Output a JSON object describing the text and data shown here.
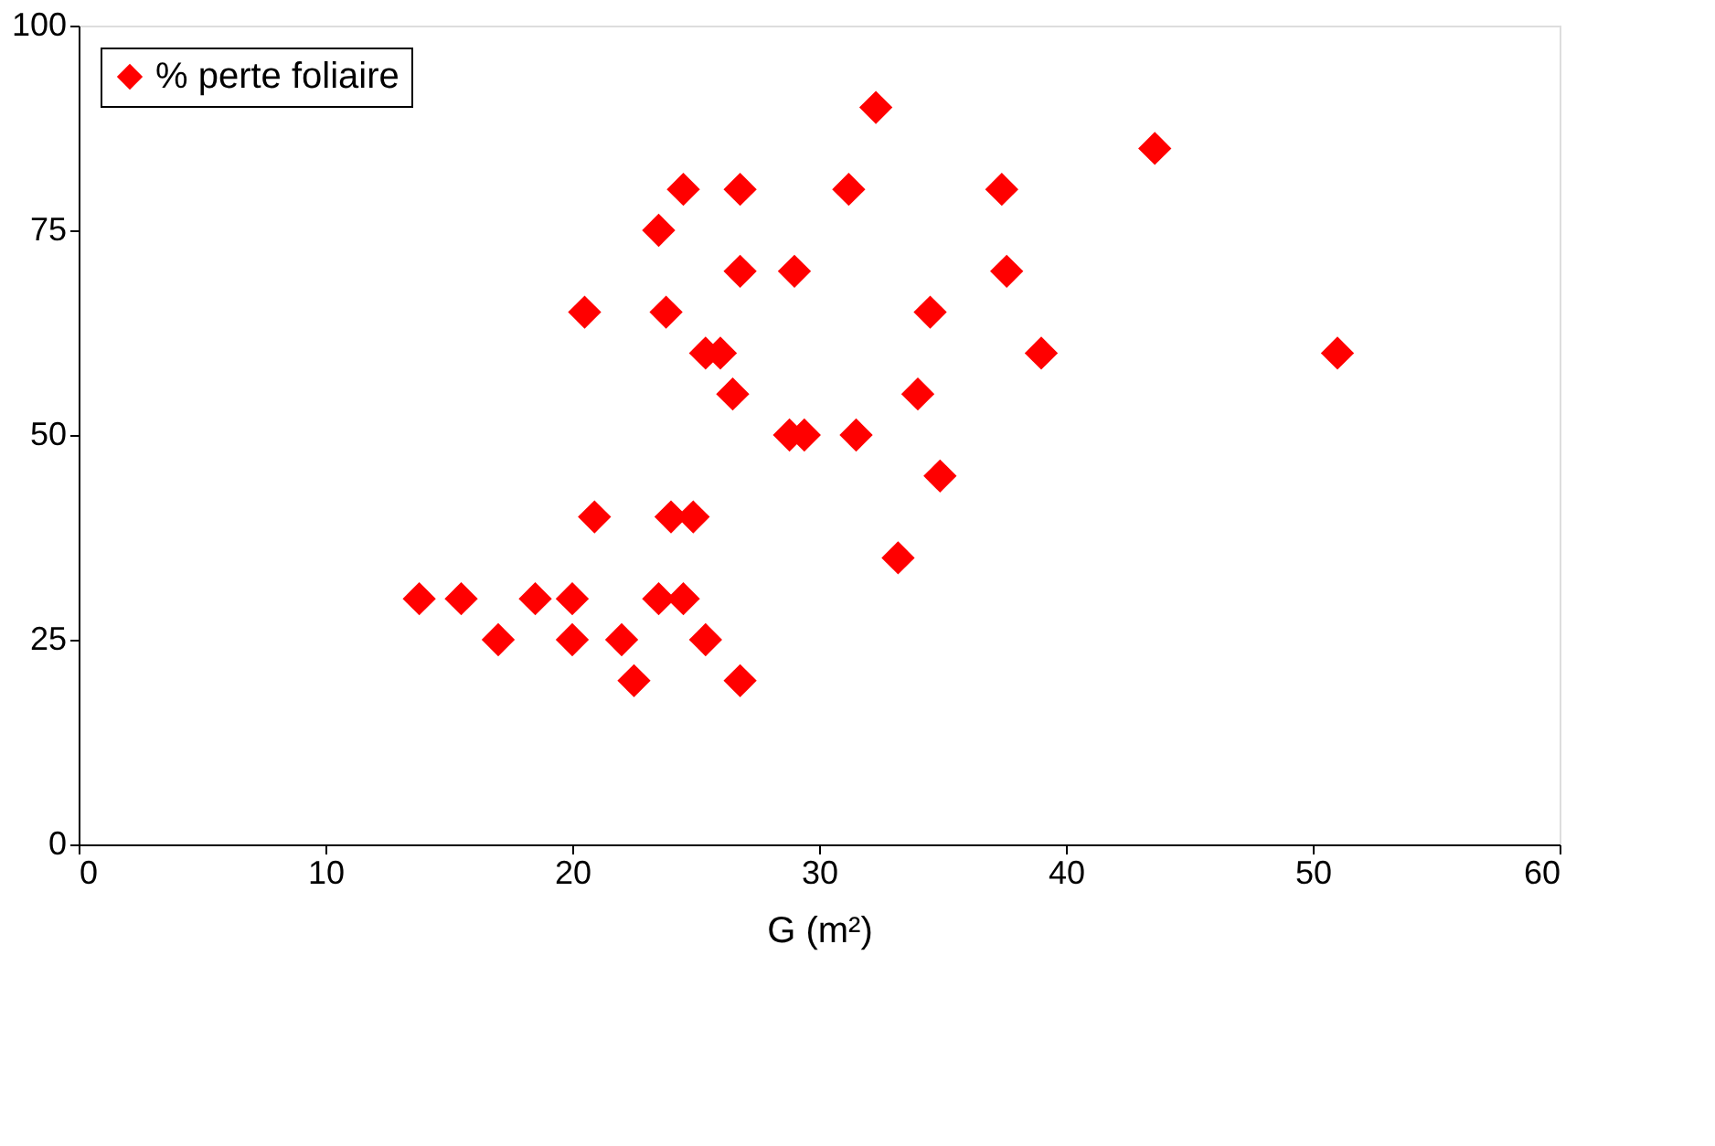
{
  "chart_data": {
    "type": "scatter",
    "xlabel": "G (m²)",
    "x": [
      13.8,
      15.5,
      17.0,
      18.5,
      20.0,
      20.0,
      20.5,
      20.9,
      22.0,
      22.5,
      23.5,
      23.5,
      23.8,
      24.0,
      24.5,
      24.5,
      24.9,
      25.4,
      25.4,
      26.0,
      26.5,
      26.8,
      26.8,
      26.8,
      29.0,
      28.8,
      29.4,
      31.2,
      31.5,
      32.3,
      33.2,
      34.0,
      34.5,
      34.9,
      37.4,
      37.6,
      39.0,
      43.6,
      51.0
    ],
    "series": [
      {
        "name": "% perte foliaire",
        "color": "#ff0000",
        "values": [
          30,
          30,
          25,
          30,
          30,
          25,
          65,
          40,
          25,
          20,
          30,
          75,
          65,
          40,
          80,
          30,
          40,
          25,
          60,
          60,
          55,
          80,
          70,
          20,
          70,
          50,
          50,
          80,
          50,
          90,
          35,
          55,
          65,
          45,
          80,
          70,
          60,
          85,
          60
        ]
      }
    ],
    "xlim": [
      0,
      60
    ],
    "xticks": [
      0,
      10,
      20,
      30,
      40,
      50,
      60
    ],
    "ylim": [
      0,
      100
    ],
    "yticks": [
      0,
      25,
      50,
      75,
      100
    ],
    "grid": false,
    "legend": "left",
    "marker": "diamond"
  }
}
